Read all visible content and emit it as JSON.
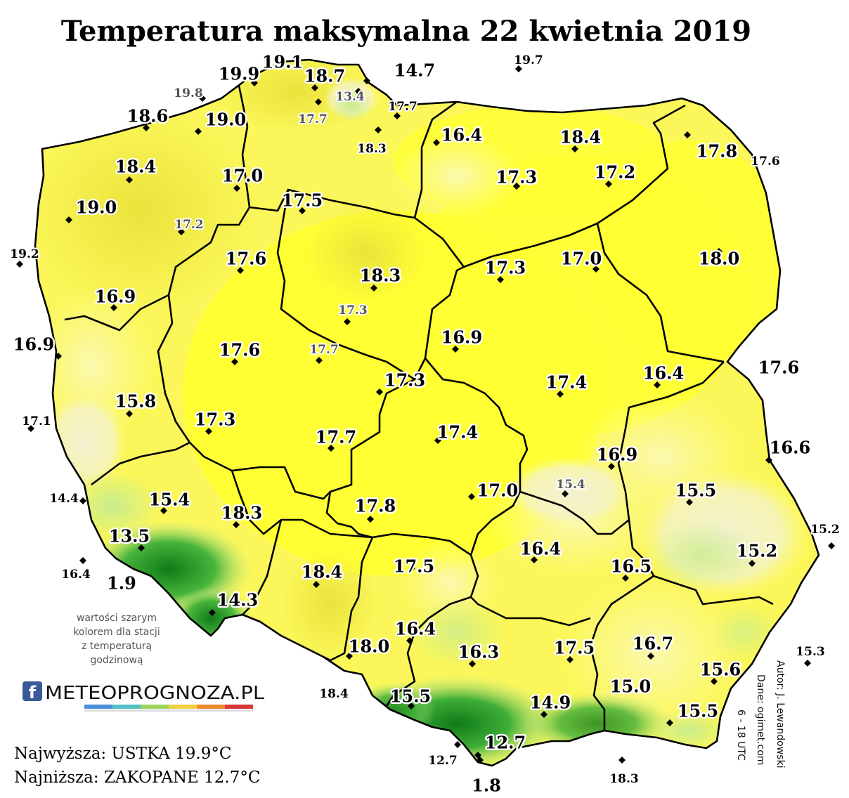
{
  "title": "Temperatura maksymalna 22 kwietnia 2019",
  "note_lines": [
    "wartości szarym",
    "kolorem dla stacji",
    "z temperaturą",
    "godzinową"
  ],
  "logo": {
    "icon": "f",
    "text": "METEOPROGNOZA.PL"
  },
  "credits": {
    "author": "Autor: J. Lewandowski",
    "source": "Dane: ogimet.com",
    "hours": "6 - 18 UTC"
  },
  "footer": {
    "max": "Najwyższa: USTKA 19.9°C",
    "min": "Najniższa: ZAKOPANE 12.7°C"
  },
  "colors": {
    "bright_yellow": "#ffff33",
    "yellow": "#fbf75a",
    "pale_yellow": "#fbf9a0",
    "cream": "#f5f3d0",
    "light_green": "#c8ec8f",
    "green": "#49b43c",
    "dark_green": "#0e7b18",
    "border": "#000000"
  },
  "stations": [
    {
      "value": "19.9",
      "size": "big",
      "gray": false
    },
    {
      "value": "19.1",
      "size": "big",
      "gray": false
    },
    {
      "value": "18.7",
      "size": "big",
      "gray": false
    },
    {
      "value": "14.7",
      "size": "big",
      "gray": false
    },
    {
      "value": "19.7",
      "size": "small",
      "gray": false
    },
    {
      "value": "19.8",
      "size": "small",
      "gray": true
    },
    {
      "value": "13.4",
      "size": "small",
      "gray": true
    },
    {
      "value": "17.7",
      "size": "small",
      "gray": false
    },
    {
      "value": "18.6",
      "size": "big",
      "gray": false
    },
    {
      "value": "19.0",
      "size": "big",
      "gray": false
    },
    {
      "value": "17.7",
      "size": "small",
      "gray": true
    },
    {
      "value": "16.4",
      "size": "big",
      "gray": false
    },
    {
      "value": "18.4",
      "size": "big",
      "gray": false
    },
    {
      "value": "17.3",
      "size": "big",
      "gray": false
    },
    {
      "value": "18.3",
      "size": "small",
      "gray": false
    },
    {
      "value": "17.8",
      "size": "big",
      "gray": false
    },
    {
      "value": "17.6",
      "size": "small",
      "gray": false
    },
    {
      "value": "18.4",
      "size": "big",
      "gray": false
    },
    {
      "value": "17.0",
      "size": "big",
      "gray": false
    },
    {
      "value": "17.3",
      "size": "big",
      "gray": false
    },
    {
      "value": "17.2",
      "size": "big",
      "gray": false
    },
    {
      "value": "19.0",
      "size": "big",
      "gray": false
    },
    {
      "value": "17.5",
      "size": "big",
      "gray": false
    },
    {
      "value": "17.2",
      "size": "small",
      "gray": true
    },
    {
      "value": "19.2",
      "size": "small",
      "gray": false
    },
    {
      "value": "17.6",
      "size": "big",
      "gray": false
    },
    {
      "value": "18.3",
      "size": "big",
      "gray": false
    },
    {
      "value": "17.3",
      "size": "big",
      "gray": false
    },
    {
      "value": "17.0",
      "size": "big",
      "gray": false
    },
    {
      "value": "18.0",
      "size": "big",
      "gray": false
    },
    {
      "value": "16.9",
      "size": "big",
      "gray": false
    },
    {
      "value": "17.3",
      "size": "small",
      "gray": true
    },
    {
      "value": "16.9",
      "size": "big",
      "gray": false
    },
    {
      "value": "16.9",
      "size": "big",
      "gray": false
    },
    {
      "value": "17.6",
      "size": "big",
      "gray": false
    },
    {
      "value": "17.7",
      "size": "small",
      "gray": true
    },
    {
      "value": "17.3",
      "size": "big",
      "gray": false
    },
    {
      "value": "17.4",
      "size": "big",
      "gray": false
    },
    {
      "value": "16.4",
      "size": "big",
      "gray": false
    },
    {
      "value": "17.6",
      "size": "big",
      "gray": false
    },
    {
      "value": "15.8",
      "size": "big",
      "gray": false
    },
    {
      "value": "17.1",
      "size": "small",
      "gray": false
    },
    {
      "value": "17.3",
      "size": "big",
      "gray": false
    },
    {
      "value": "17.7",
      "size": "big",
      "gray": false
    },
    {
      "value": "17.4",
      "size": "big",
      "gray": false
    },
    {
      "value": "16.9",
      "size": "big",
      "gray": false
    },
    {
      "value": "16.6",
      "size": "big",
      "gray": false
    },
    {
      "value": "14.4",
      "size": "small",
      "gray": false
    },
    {
      "value": "15.4",
      "size": "big",
      "gray": false
    },
    {
      "value": "18.3",
      "size": "big",
      "gray": false
    },
    {
      "value": "17.0",
      "size": "big",
      "gray": false
    },
    {
      "value": "15.4",
      "size": "small",
      "gray": true
    },
    {
      "value": "15.5",
      "size": "big",
      "gray": false
    },
    {
      "value": "17.8",
      "size": "big",
      "gray": false
    },
    {
      "value": "13.5",
      "size": "big",
      "gray": false
    },
    {
      "value": "16.4",
      "size": "big",
      "gray": false
    },
    {
      "value": "15.2",
      "size": "big",
      "gray": false
    },
    {
      "value": "15.2",
      "size": "small",
      "gray": false
    },
    {
      "value": "16.4",
      "size": "small",
      "gray": false
    },
    {
      "value": "1.9",
      "size": "big",
      "gray": false
    },
    {
      "value": "18.4",
      "size": "big",
      "gray": false
    },
    {
      "value": "17.5",
      "size": "big",
      "gray": false
    },
    {
      "value": "16.5",
      "size": "big",
      "gray": false
    },
    {
      "value": "14.3",
      "size": "big",
      "gray": false
    },
    {
      "value": "16.4",
      "size": "big",
      "gray": false
    },
    {
      "value": "18.0",
      "size": "big",
      "gray": false
    },
    {
      "value": "16.3",
      "size": "big",
      "gray": false
    },
    {
      "value": "17.5",
      "size": "big",
      "gray": false
    },
    {
      "value": "16.7",
      "size": "big",
      "gray": false
    },
    {
      "value": "15.3",
      "size": "small",
      "gray": false
    },
    {
      "value": "15.6",
      "size": "big",
      "gray": false
    },
    {
      "value": "18.4",
      "size": "small",
      "gray": false
    },
    {
      "value": "15.5",
      "size": "big",
      "gray": false
    },
    {
      "value": "15.0",
      "size": "big",
      "gray": false
    },
    {
      "value": "14.9",
      "size": "big",
      "gray": false
    },
    {
      "value": "15.5",
      "size": "big",
      "gray": false
    },
    {
      "value": "12.7",
      "size": "big",
      "gray": false
    },
    {
      "value": "12.7",
      "size": "small",
      "gray": false
    },
    {
      "value": "1.8",
      "size": "big",
      "gray": false
    },
    {
      "value": "18.3",
      "size": "small",
      "gray": false
    }
  ]
}
